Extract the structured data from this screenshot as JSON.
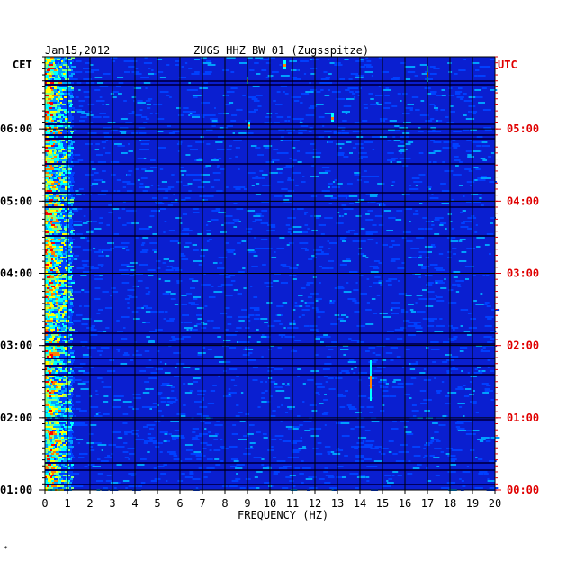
{
  "header": {
    "date": "Jan15,2012",
    "title": "ZUGS HHZ BW 01 (Zugsspitze)",
    "left_zone": "CET",
    "right_zone": "UTC",
    "corner_mark": "*"
  },
  "colors": {
    "background": "#0a1fd0",
    "grid": "#000000",
    "left_labels": "#000000",
    "right_labels": "#e00000"
  },
  "chart_data": {
    "type": "heatmap",
    "title": "ZUGS HHZ BW 01 (Zugsspitze)",
    "xlabel": "FREQUENCY (HZ)",
    "ylabel_left": "CET",
    "ylabel_right": "UTC",
    "x_range": [
      0,
      20
    ],
    "x_ticks": [
      "0",
      "1",
      "2",
      "3",
      "4",
      "5",
      "6",
      "7",
      "8",
      "9",
      "10",
      "11",
      "12",
      "13",
      "14",
      "15",
      "16",
      "17",
      "18",
      "19",
      "20"
    ],
    "y_ticks_left": [
      "06:00",
      "05:00",
      "04:00",
      "03:00",
      "02:00",
      "01:00"
    ],
    "y_ticks_right": [
      "05:00",
      "04:00",
      "03:00",
      "02:00",
      "01:00",
      "00:00"
    ],
    "grid": true,
    "colormap": [
      "#000060",
      "#0010c0",
      "#0040ff",
      "#00a0ff",
      "#00ffff",
      "#80ff80",
      "#ffff00",
      "#ff8000",
      "#ff0000"
    ]
  }
}
